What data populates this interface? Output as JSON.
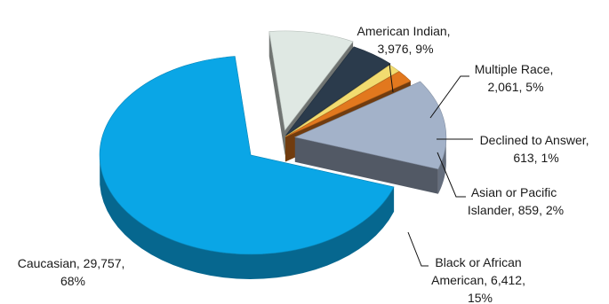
{
  "chart_data": {
    "type": "pie",
    "slices": [
      {
        "category": "American Indian",
        "value": 3976,
        "percent": "9%",
        "color": "#dfe8e3"
      },
      {
        "category": "Multiple Race",
        "value": 2061,
        "percent": "5%",
        "color": "#2b3b4c"
      },
      {
        "category": "Declined to Answer",
        "value": 613,
        "percent": "1%",
        "color": "#f2dc70"
      },
      {
        "category": "Asian or Pacific Islander",
        "value": 859,
        "percent": "2%",
        "color": "#e2781e"
      },
      {
        "category": "Black or African American",
        "value": 6412,
        "percent": "15%",
        "color": "#a3b2c9"
      },
      {
        "category": "Caucasian",
        "value": 29757,
        "percent": "68%",
        "color": "#0aa6e6"
      }
    ],
    "labels": {
      "american_indian": [
        "American Indian,",
        "3,976, 9%"
      ],
      "multiple_race": [
        "Multiple Race,",
        "2,061, 5%"
      ],
      "declined": [
        "Declined to Answer,",
        "613, 1%"
      ],
      "asian": [
        "Asian or Pacific",
        "Islander, 859, 2%"
      ],
      "black": [
        "Black or African",
        "American, 6,412,",
        "15%"
      ],
      "caucasian": [
        "Caucasian, 29,757,",
        "68%"
      ]
    },
    "legend": "none",
    "style": "3d-exploded"
  }
}
